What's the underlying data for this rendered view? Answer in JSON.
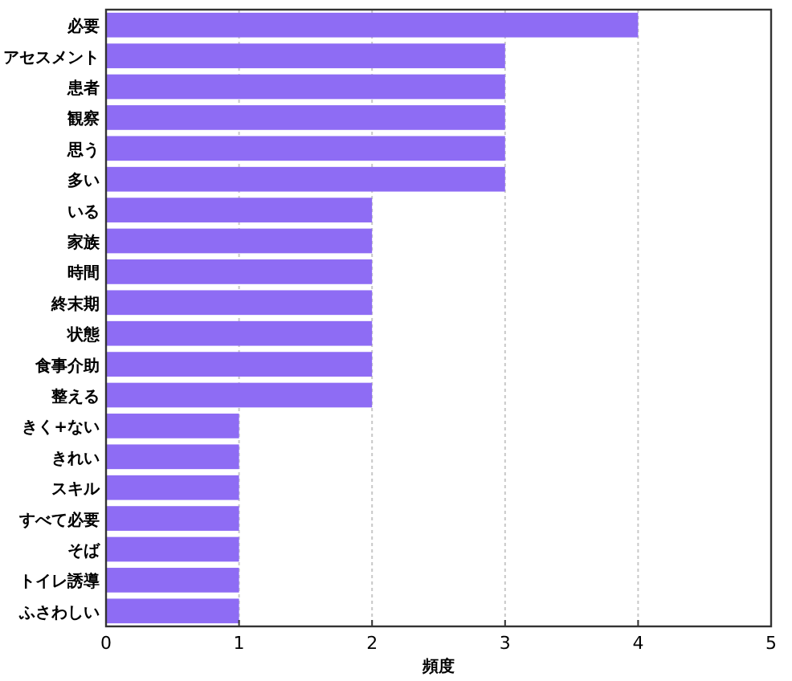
{
  "chart_data": {
    "type": "bar",
    "orientation": "horizontal",
    "xlabel": "頻度",
    "categories": [
      "必要",
      "アセスメント",
      "患者",
      "観察",
      "思う",
      "多い",
      "いる",
      "家族",
      "時間",
      "終末期",
      "状態",
      "食事介助",
      "整える",
      "きく+ない",
      "きれい",
      "スキル",
      "すべて必要",
      "そば",
      "トイレ誘導",
      "ふさわしい"
    ],
    "values": [
      4,
      3,
      3,
      3,
      3,
      3,
      2,
      2,
      2,
      2,
      2,
      2,
      2,
      1,
      1,
      1,
      1,
      1,
      1,
      1
    ],
    "color": "#8e6cf4",
    "xlim": [
      0,
      5
    ],
    "xticks": [
      0,
      1,
      2,
      3,
      4,
      5
    ],
    "grid": "x"
  }
}
